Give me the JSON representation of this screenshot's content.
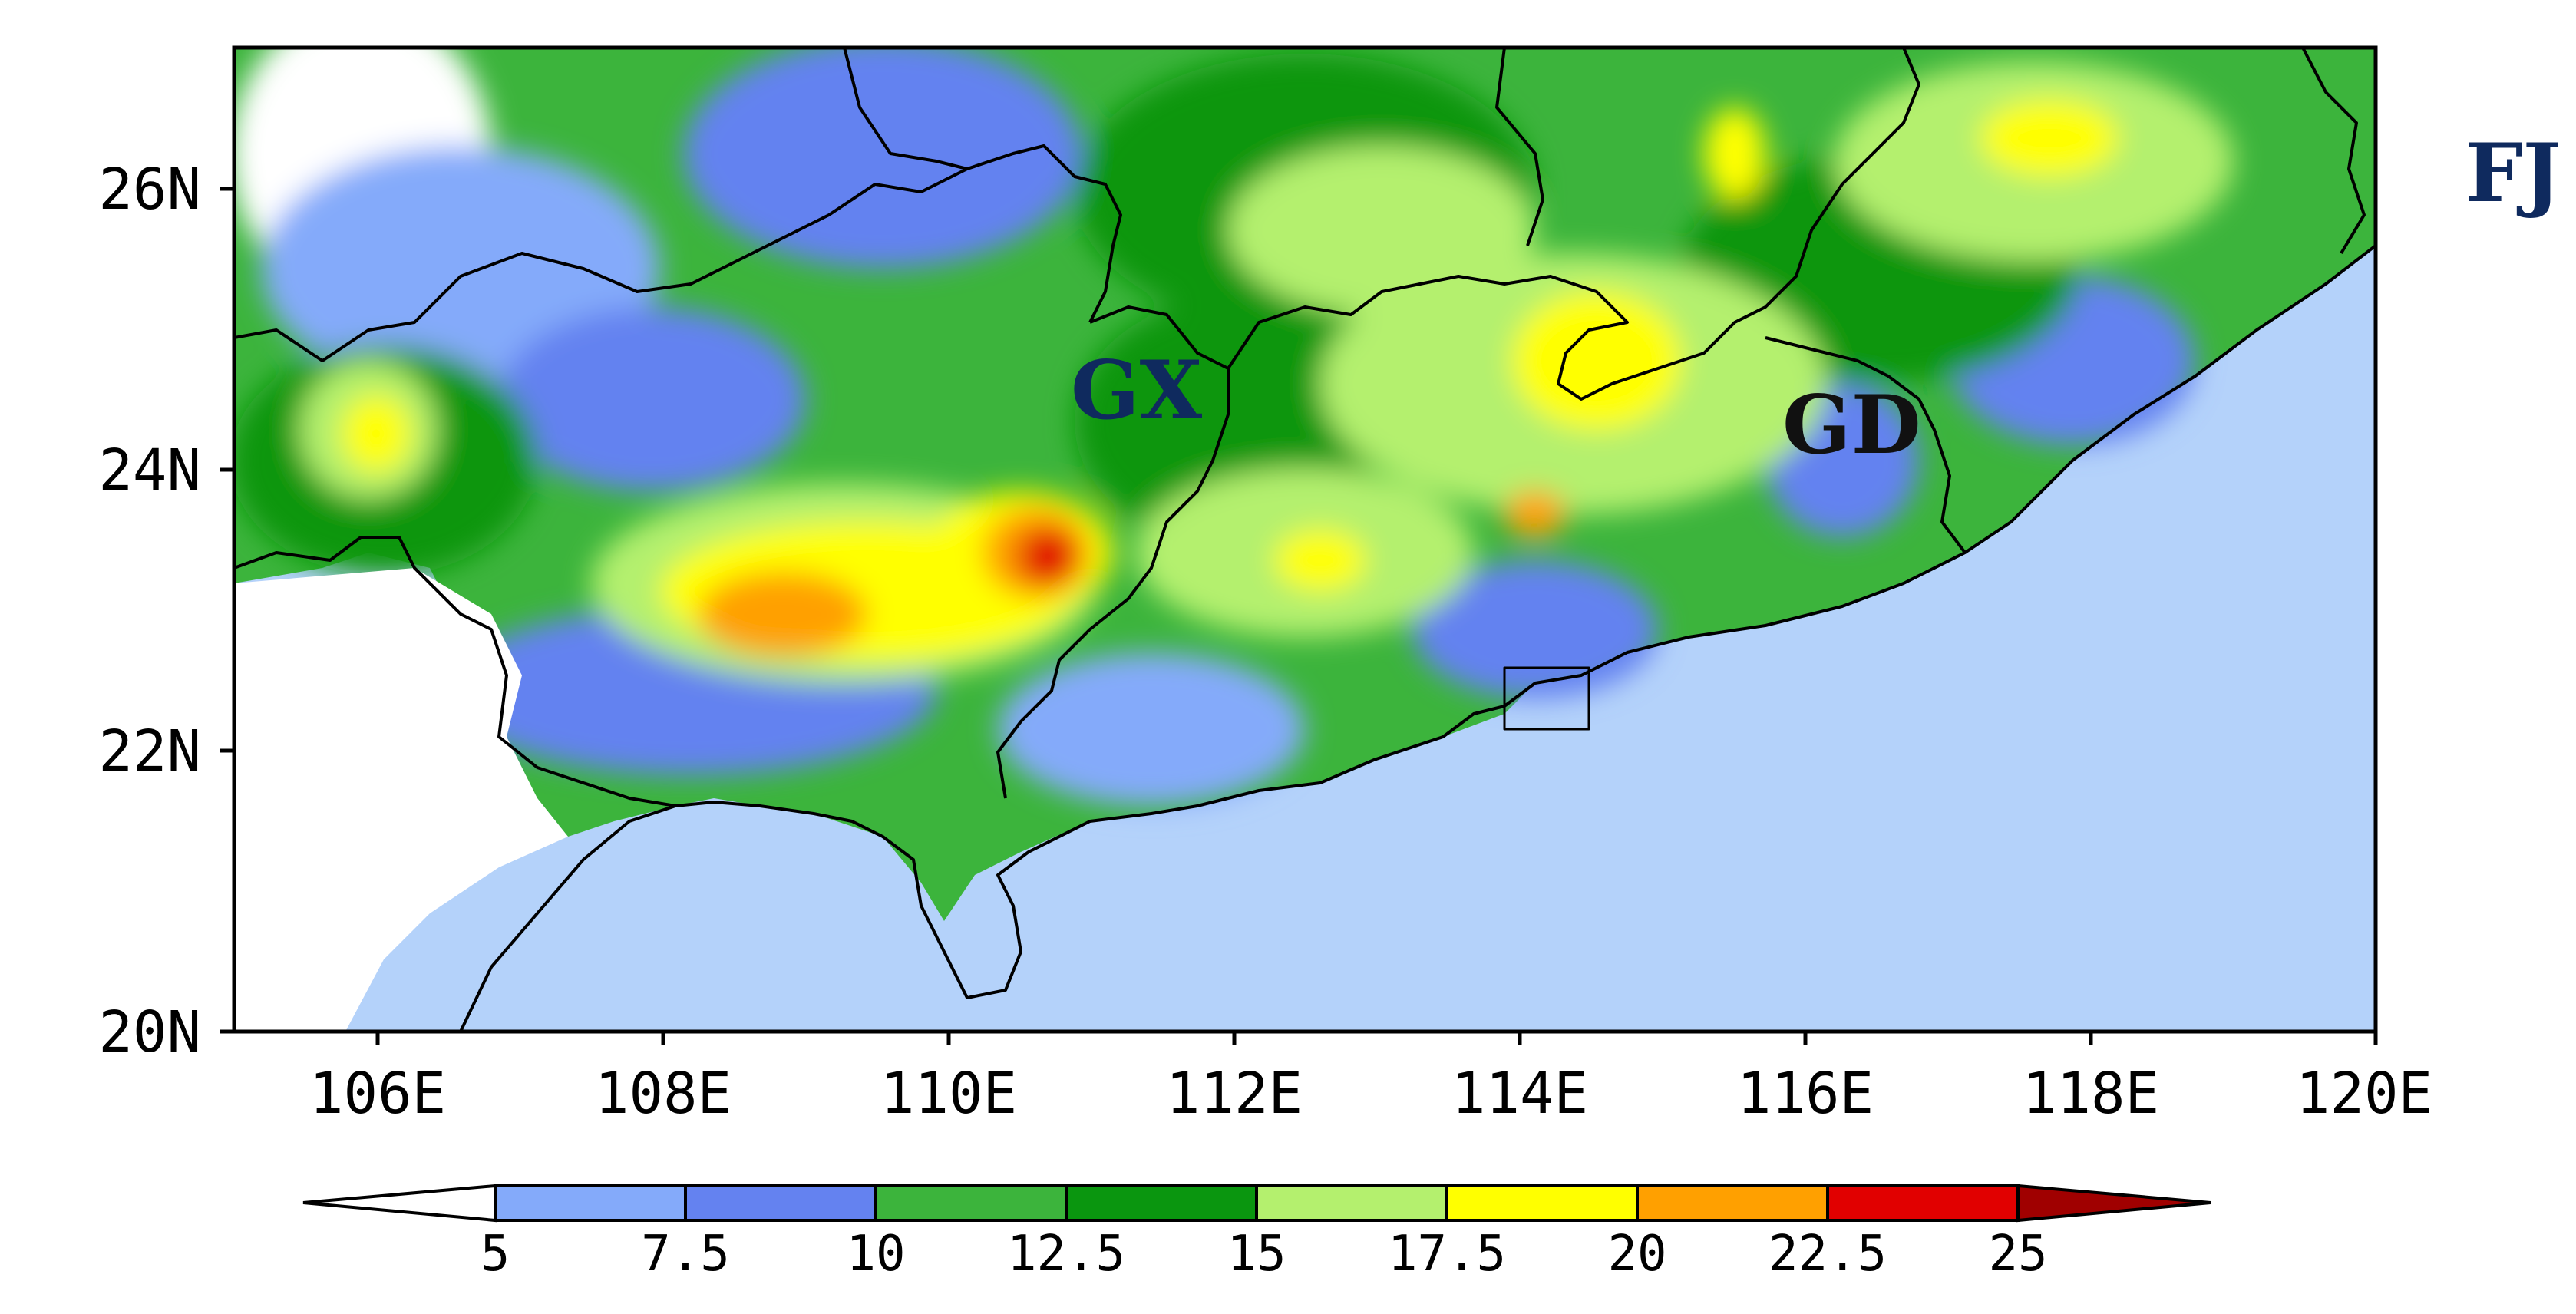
{
  "map": {
    "extent": {
      "lon_min": 105,
      "lon_max": 120,
      "lat_min": 20,
      "lat_max": 27
    },
    "background_color": "#ffffff",
    "ocean_color": "#b4d2fa",
    "x_ticks": [
      "106E",
      "108E",
      "110E",
      "112E",
      "114E",
      "116E",
      "118E",
      "120E"
    ],
    "y_ticks": [
      "20N",
      "22N",
      "24N",
      "26N"
    ],
    "province_labels": [
      {
        "text": "GX",
        "color": "#0f2a5e"
      },
      {
        "text": "GD",
        "color": "#111111"
      },
      {
        "text": "FJ",
        "color": "#0f2a5e"
      }
    ]
  },
  "colorbar": {
    "tick_labels": [
      "5",
      "7.5",
      "10",
      "12.5",
      "15",
      "17.5",
      "20",
      "22.5",
      "25"
    ],
    "under_color": "#ffffff",
    "colors": [
      "#84aafa",
      "#6482f0",
      "#3cb43c",
      "#0a960f",
      "#b4f06e",
      "#ffff00",
      "#ffa000",
      "#e10000"
    ],
    "over_color": "#a00000"
  }
}
